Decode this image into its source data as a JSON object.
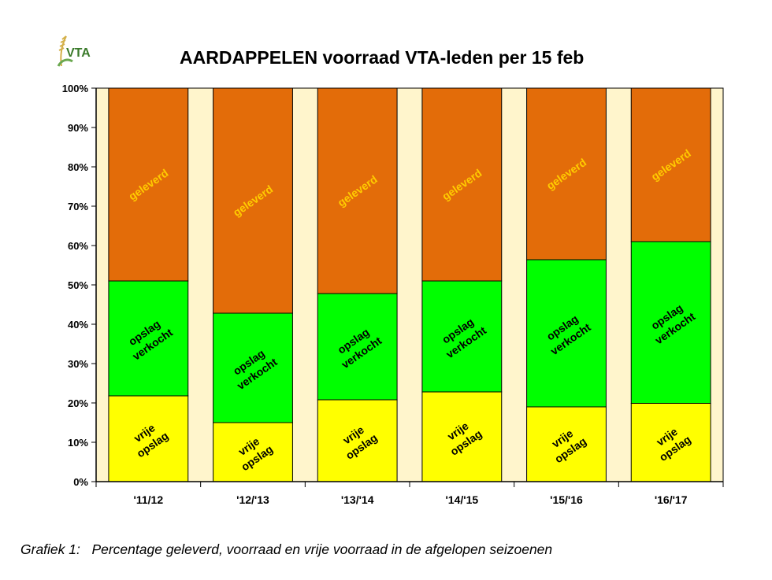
{
  "logo": {
    "text": "VTA",
    "colors": {
      "green": "#6aa84f",
      "gold": "#d4b04a",
      "text": "#3a7a2a"
    }
  },
  "caption": "Grafiek 1:   Percentage geleverd, voorraad en vrije voorraad in de afgelopen seizoenen",
  "chart_data": {
    "type": "bar",
    "stacked": true,
    "title": "AARDAPPELEN voorraad VTA-leden per 15 feb",
    "categories": [
      "'11/12",
      "'12/'13",
      "'13/'14",
      "'14/'15",
      "'15/'16",
      "'16/'17"
    ],
    "series": [
      {
        "name": "vrije opslag",
        "label_lines": [
          "vrije",
          "opslag"
        ],
        "color": "#ffff00",
        "label_color": "#000000",
        "values": [
          21.8,
          15.0,
          20.8,
          22.8,
          19.0,
          19.9
        ]
      },
      {
        "name": "opslag verkocht",
        "label_lines": [
          "opslag",
          "verkocht"
        ],
        "color": "#00ff00",
        "label_color": "#000000",
        "values": [
          29.2,
          27.8,
          27.0,
          28.2,
          37.4,
          41.1
        ]
      },
      {
        "name": "geleverd",
        "label_lines": [
          "geleverd"
        ],
        "color": "#e36c09",
        "label_color": "#ffcc00",
        "values": [
          49.0,
          57.2,
          52.2,
          49.0,
          43.6,
          39.0
        ]
      }
    ],
    "ylim": [
      0,
      100
    ],
    "yticks": [
      "0%",
      "10%",
      "20%",
      "30%",
      "40%",
      "50%",
      "60%",
      "70%",
      "80%",
      "90%",
      "100%"
    ],
    "plot_background": "#fff5cc",
    "grid": false,
    "legend": "none (labels inside bars)"
  }
}
